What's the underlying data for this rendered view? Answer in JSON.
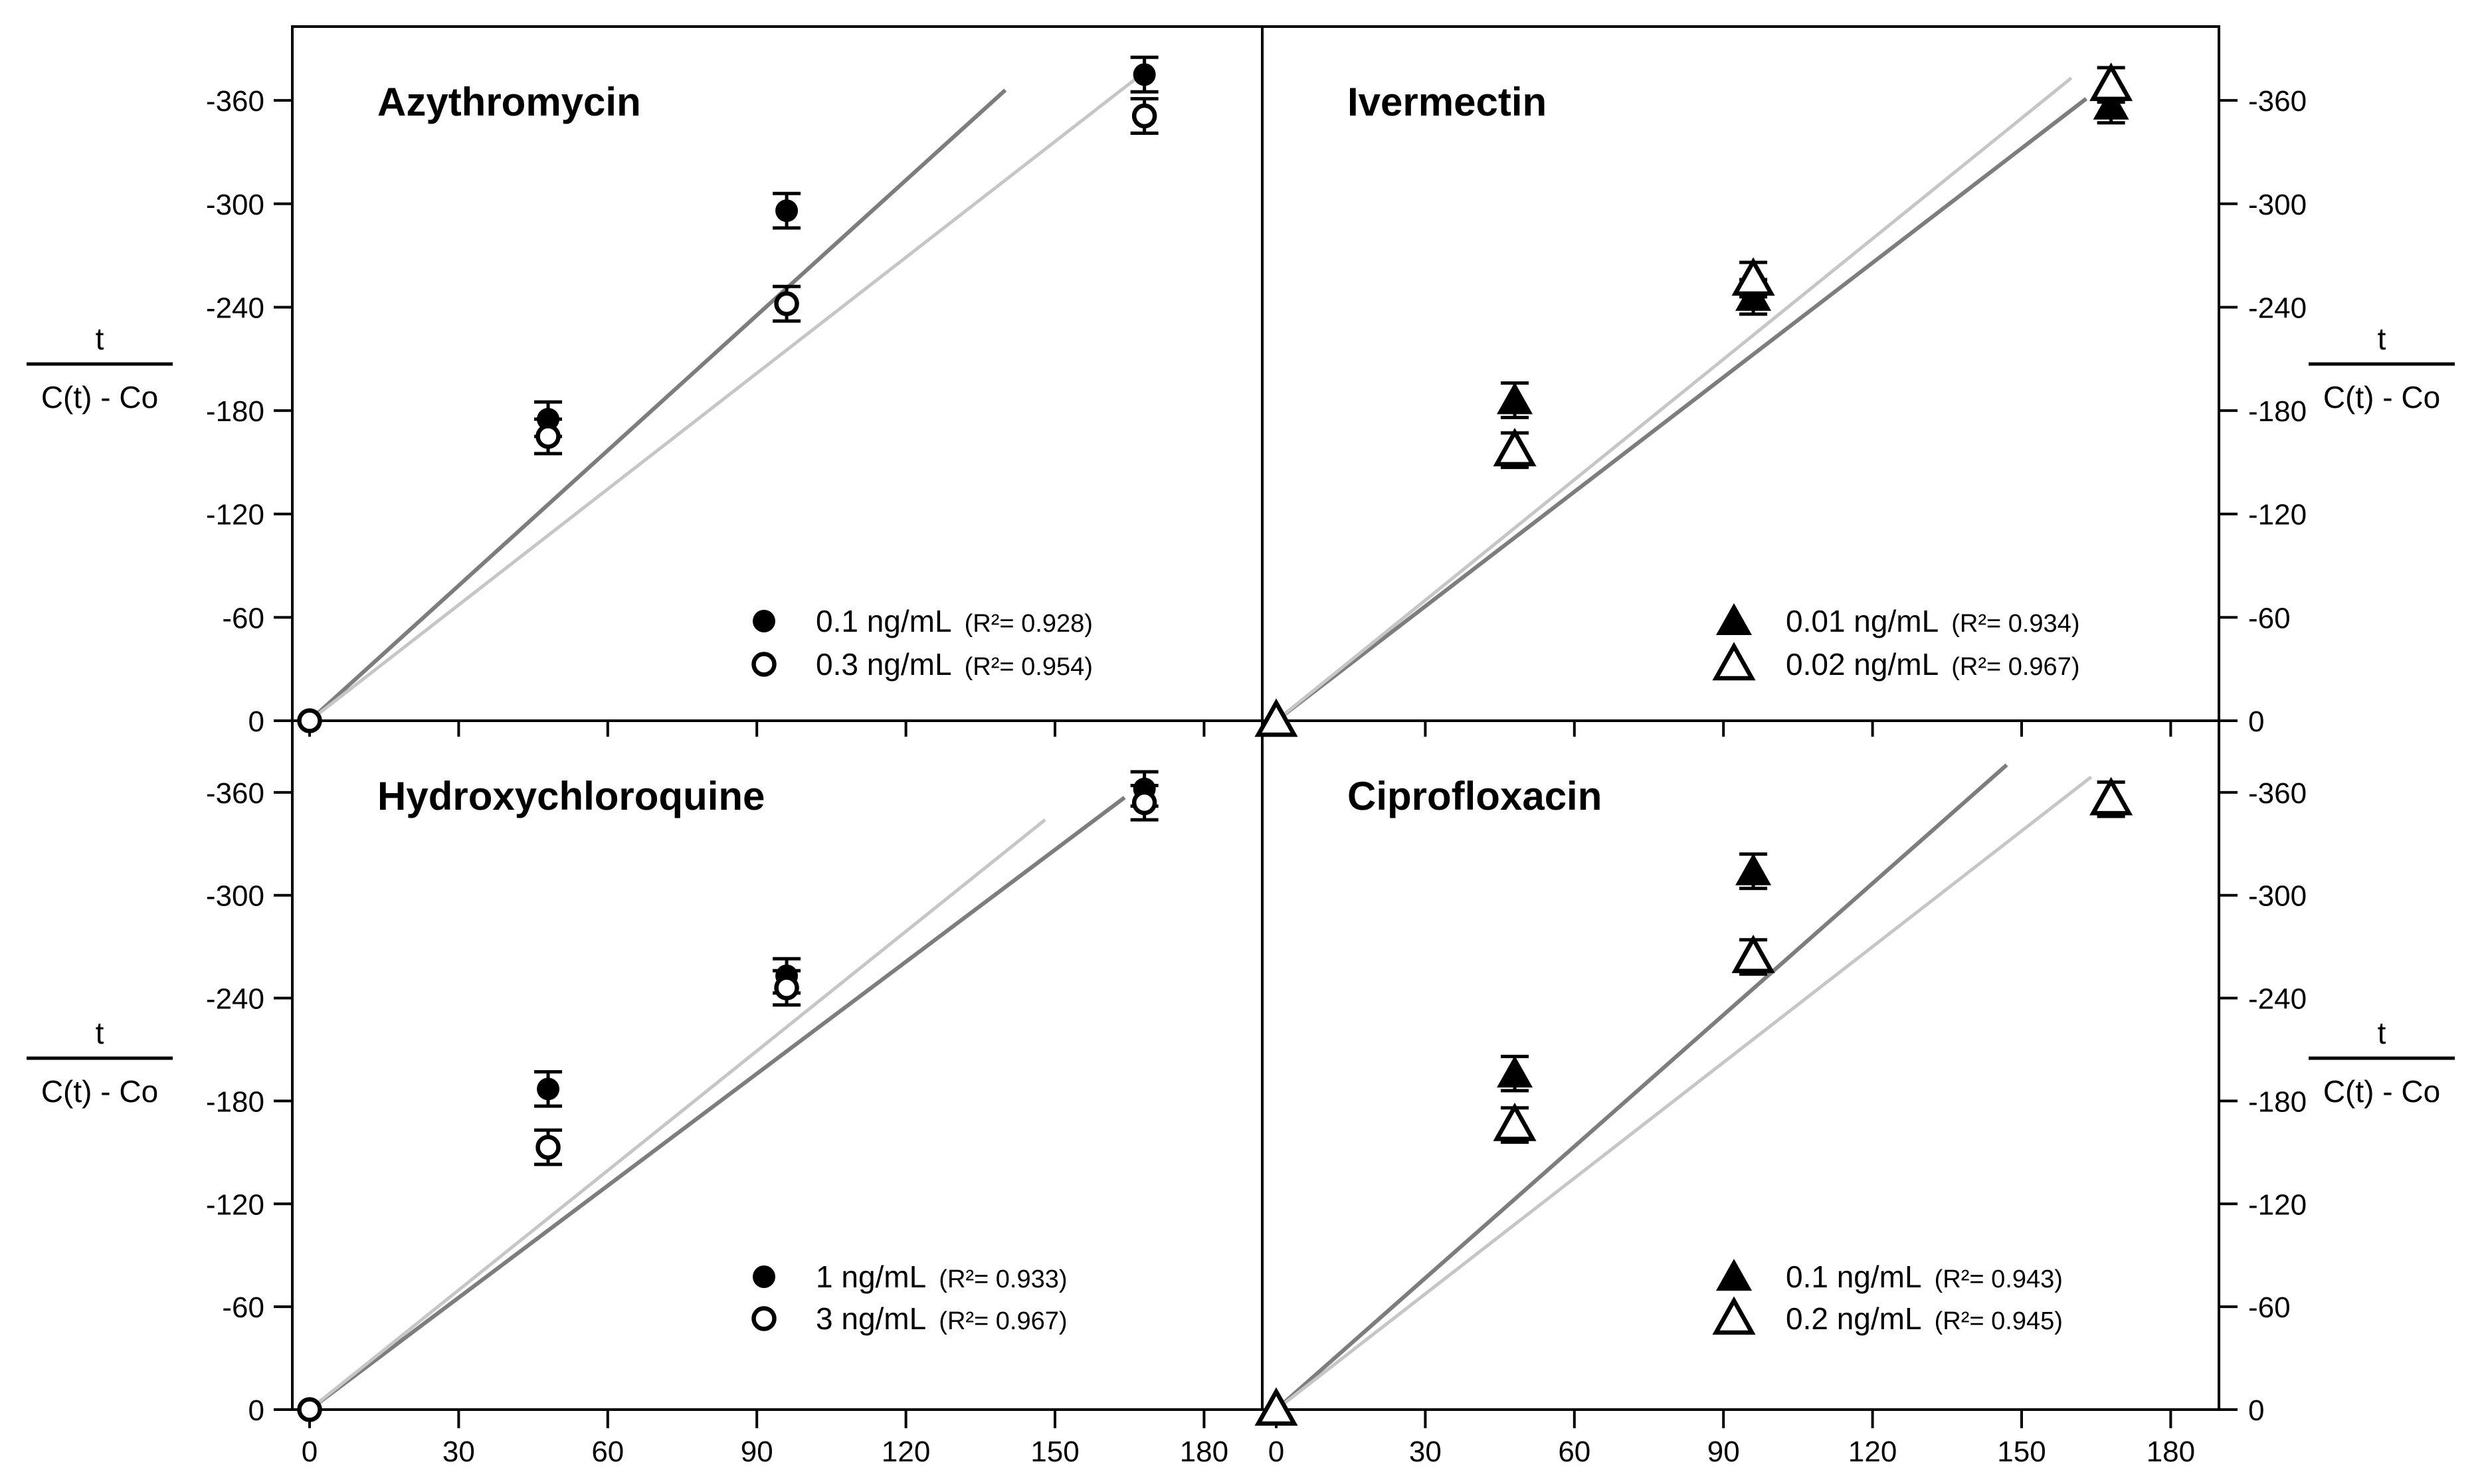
{
  "figure": {
    "background": "#ffffff",
    "title_color": "#6a6a6a",
    "axis_color": "#000000",
    "line_colors": {
      "dark": "#7d7d7d",
      "light": "#c6c6c6"
    },
    "x_ticks": [
      0,
      30,
      60,
      90,
      120,
      150,
      180
    ],
    "y_ticks": [
      0,
      -60,
      -120,
      -180,
      -240,
      -300,
      -360
    ],
    "y_axis_label": {
      "numerator": "t",
      "denominator": "C(t) - Co"
    },
    "x_range": [
      0,
      195
    ],
    "y_range": [
      0,
      -405
    ]
  },
  "chart_data": [
    {
      "type": "scatter",
      "title": "Azythromycin",
      "position": {
        "col": 0,
        "row": 0
      },
      "y_axis_side": "left",
      "series": [
        {
          "name": "0.1 ng/mL",
          "r2": 0.928,
          "r2_label": "(R²= 0.928)",
          "marker": "filled-circle",
          "points": [
            [
              0,
              0
            ],
            [
              48,
              -175
            ],
            [
              96,
              -296
            ],
            [
              168,
              -375
            ]
          ],
          "y_err": 10
        },
        {
          "name": "0.3 ng/mL",
          "r2": 0.954,
          "r2_label": "(R²= 0.954)",
          "marker": "open-circle",
          "points": [
            [
              0,
              0
            ],
            [
              48,
              -165
            ],
            [
              96,
              -242
            ],
            [
              168,
              -351
            ]
          ],
          "y_err": 10
        }
      ],
      "fit_lines": [
        {
          "series": "0.1 ng/mL",
          "shade": "dark",
          "from": [
            0,
            0
          ],
          "to": [
            140,
            -366
          ]
        },
        {
          "series": "0.3 ng/mL",
          "shade": "light",
          "from": [
            0,
            0
          ],
          "to": [
            166,
            -372
          ]
        }
      ]
    },
    {
      "type": "scatter",
      "title": "Ivermectin",
      "position": {
        "col": 1,
        "row": 0
      },
      "y_axis_side": "right",
      "series": [
        {
          "name": "0.01 ng/mL",
          "r2": 0.934,
          "r2_label": "(R²= 0.934)",
          "marker": "filled-triangle",
          "points": [
            [
              0,
              0
            ],
            [
              48,
              -186
            ],
            [
              96,
              -246
            ],
            [
              168,
              -357
            ]
          ],
          "y_err": 10
        },
        {
          "name": "0.02 ng/mL",
          "r2": 0.967,
          "r2_label": "(R²= 0.967)",
          "marker": "open-triangle",
          "points": [
            [
              0,
              0
            ],
            [
              48,
              -157
            ],
            [
              96,
              -256
            ],
            [
              168,
              -369
            ]
          ],
          "y_err": 10
        }
      ],
      "fit_lines": [
        {
          "series": "0.01 ng/mL",
          "shade": "dark",
          "from": [
            0,
            0
          ],
          "to": [
            163,
            -361
          ]
        },
        {
          "series": "0.02 ng/mL",
          "shade": "light",
          "from": [
            0,
            0
          ],
          "to": [
            160,
            -373
          ]
        }
      ]
    },
    {
      "type": "scatter",
      "title": "Hydroxychloroquine",
      "position": {
        "col": 0,
        "row": 1
      },
      "y_axis_side": "left",
      "series": [
        {
          "name": "1 ng/mL",
          "r2": 0.933,
          "r2_label": "(R²= 0.933)",
          "marker": "filled-circle",
          "points": [
            [
              0,
              0
            ],
            [
              48,
              -187
            ],
            [
              96,
              -253
            ],
            [
              168,
              -362
            ]
          ],
          "y_err": 10
        },
        {
          "name": "3 ng/mL",
          "r2": 0.967,
          "r2_label": "(R²= 0.967)",
          "marker": "open-circle",
          "points": [
            [
              0,
              0
            ],
            [
              48,
              -153
            ],
            [
              96,
              -246
            ],
            [
              168,
              -354
            ]
          ],
          "y_err": 10
        }
      ],
      "fit_lines": [
        {
          "series": "1 ng/mL",
          "shade": "dark",
          "from": [
            0,
            0
          ],
          "to": [
            164,
            -357
          ]
        },
        {
          "series": "3 ng/mL",
          "shade": "light",
          "from": [
            0,
            0
          ],
          "to": [
            148,
            -344
          ]
        }
      ]
    },
    {
      "type": "scatter",
      "title": "Ciprofloxacin",
      "position": {
        "col": 1,
        "row": 1
      },
      "y_axis_side": "right",
      "series": [
        {
          "name": "0.1 ng/mL",
          "r2": 0.943,
          "r2_label": "(R²= 0.943)",
          "marker": "filled-triangle",
          "points": [
            [
              0,
              0
            ],
            [
              48,
              -196
            ],
            [
              96,
              -314
            ]
          ],
          "y_err": 10
        },
        {
          "name": "0.2 ng/mL",
          "r2": 0.945,
          "r2_label": "(R²= 0.945)",
          "marker": "open-triangle",
          "points": [
            [
              0,
              0
            ],
            [
              48,
              -166
            ],
            [
              96,
              -264
            ],
            [
              168,
              -356
            ]
          ],
          "y_err": 10
        }
      ],
      "fit_lines": [
        {
          "series": "0.1 ng/mL",
          "shade": "dark",
          "from": [
            0,
            0
          ],
          "to": [
            147,
            -376
          ]
        },
        {
          "series": "0.2 ng/mL",
          "shade": "light",
          "from": [
            0,
            0
          ],
          "to": [
            164,
            -369
          ]
        }
      ]
    }
  ]
}
